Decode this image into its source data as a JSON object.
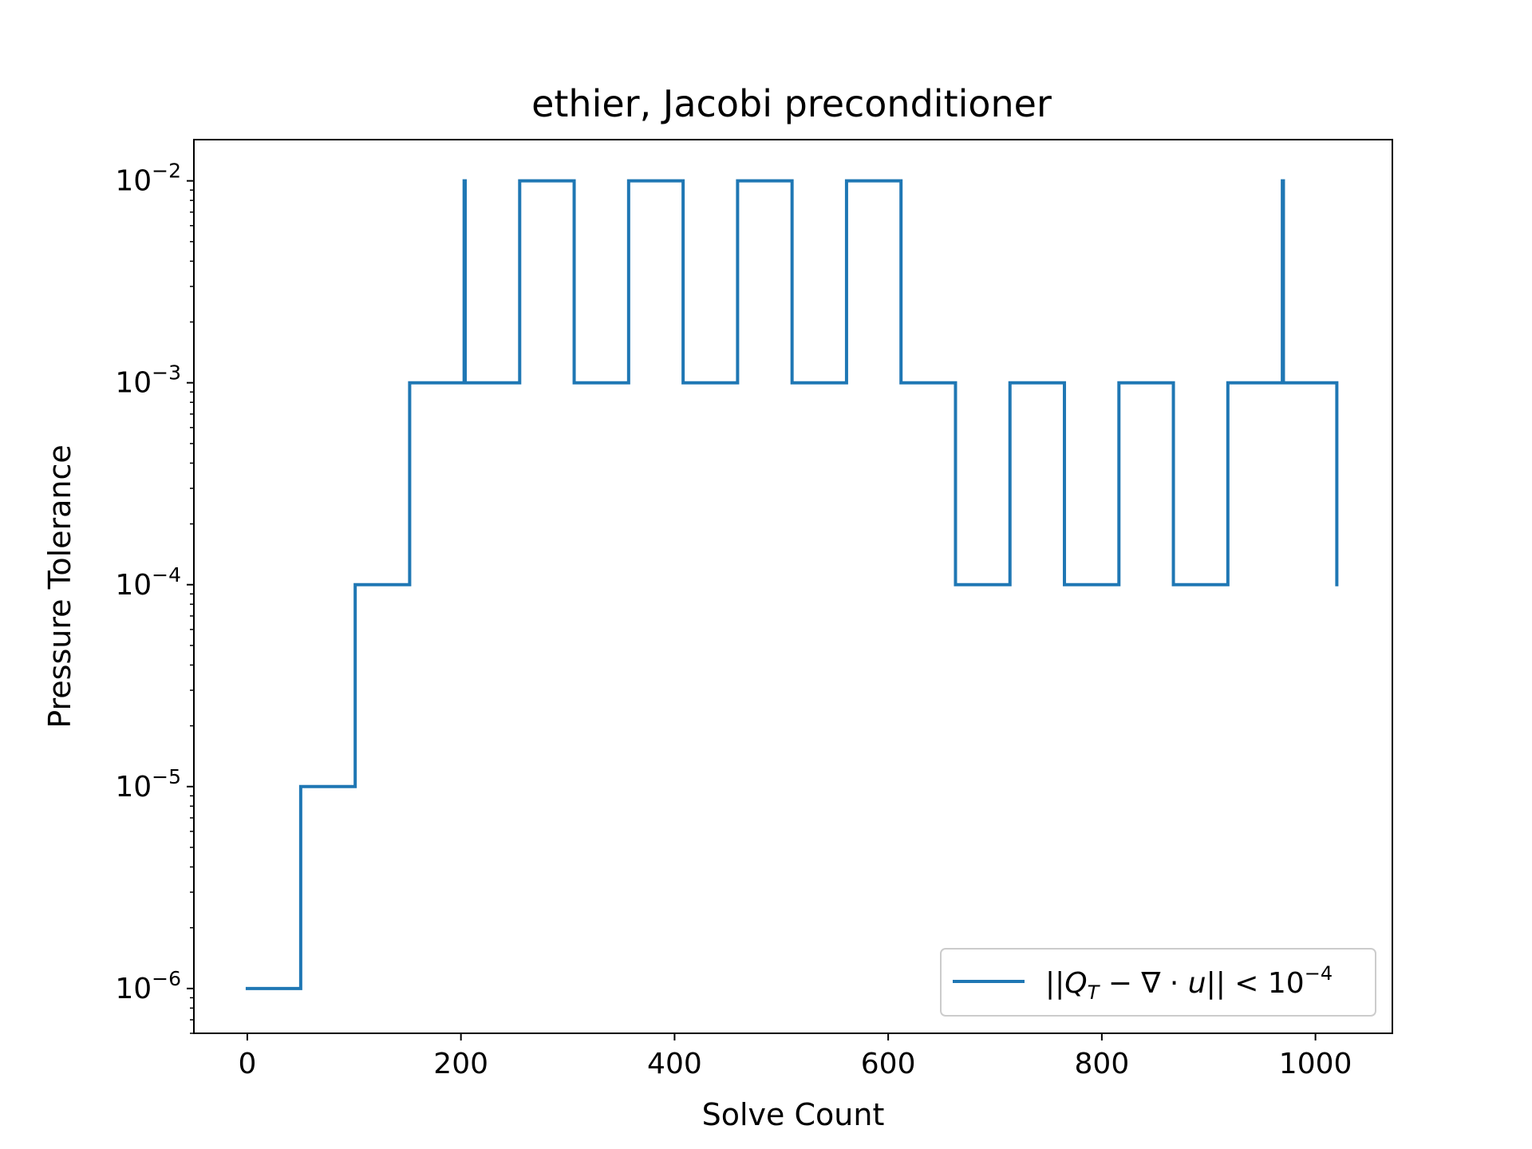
{
  "chart_data": {
    "type": "line",
    "title": "ethier, Jacobi preconditioner",
    "xlabel": "Solve Count",
    "ylabel": "Pressure Tolerance",
    "xlim": [
      -50,
      1072
    ],
    "ylim": [
      6e-07,
      0.016
    ],
    "yscale": "log",
    "xticks": [
      0,
      200,
      400,
      600,
      800,
      1000
    ],
    "xtick_labels": [
      "0",
      "200",
      "400",
      "600",
      "800",
      "1000"
    ],
    "yticks": [
      1e-06,
      1e-05,
      0.0001,
      0.001,
      0.01
    ],
    "ytick_bases": [
      "10",
      "10",
      "10",
      "10",
      "10"
    ],
    "ytick_exponents": [
      "−6",
      "−5",
      "−4",
      "−3",
      "−2"
    ],
    "grid": false,
    "legend_position": "lower-right",
    "series": [
      {
        "name": "||Q_T − ∇·u|| < 10^−4",
        "legend_label": {
          "prefix": "||",
          "symbol": "Q",
          "subscript": "T",
          "middle": " − ∇ · ",
          "var": "u",
          "suffix": "|| < 10",
          "exponent": "−4"
        },
        "color": "#1f77b4",
        "x": [
          0,
          50,
          50,
          101,
          101,
          152,
          152,
          203,
          203,
          204,
          204,
          255,
          255,
          306,
          306,
          357,
          357,
          408,
          408,
          459,
          459,
          510,
          510,
          561,
          561,
          612,
          612,
          663,
          663,
          714,
          714,
          765,
          765,
          816,
          816,
          867,
          867,
          918,
          918,
          969,
          969,
          970,
          970,
          1020,
          1020
        ],
        "y": [
          1e-06,
          1e-06,
          1e-05,
          1e-05,
          0.0001,
          0.0001,
          0.001,
          0.001,
          0.01,
          0.01,
          0.001,
          0.001,
          0.01,
          0.01,
          0.001,
          0.001,
          0.01,
          0.01,
          0.001,
          0.001,
          0.01,
          0.01,
          0.001,
          0.001,
          0.01,
          0.01,
          0.001,
          0.001,
          0.0001,
          0.0001,
          0.001,
          0.001,
          0.0001,
          0.0001,
          0.001,
          0.001,
          0.0001,
          0.0001,
          0.001,
          0.001,
          0.01,
          0.01,
          0.001,
          0.001,
          0.0001
        ]
      }
    ]
  }
}
